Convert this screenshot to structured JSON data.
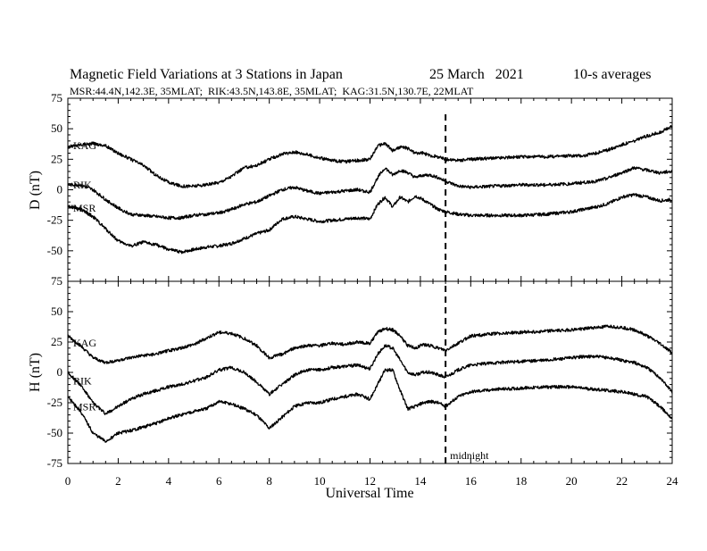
{
  "chart_data": {
    "type": "line",
    "title": "Magnetic Field Variations at 3 Stations in Japan",
    "date": "25 March   2021",
    "averaging": "10-s averages",
    "subtitle": "MSR:44.4N,142.3E, 35MLAT;  RIK:43.5N,143.8E, 35MLAT;  KAG:31.5N,130.7E, 22MLAT",
    "xlabel": "Universal Time",
    "xlim": [
      0,
      24
    ],
    "xticks": [
      0,
      2,
      4,
      6,
      8,
      10,
      12,
      14,
      16,
      18,
      20,
      22,
      24
    ],
    "grid": false,
    "annotation": {
      "text": "midnight",
      "x": 15
    },
    "panels": [
      {
        "ylabel": "D (nT)",
        "ylim": [
          -75,
          75
        ],
        "yticks": [
          75,
          50,
          25,
          0,
          -25,
          -50,
          -75
        ],
        "series": [
          {
            "name": "KAG",
            "x": [
              0,
              0.5,
              1,
              1.5,
              2,
              2.5,
              3,
              3.5,
              4,
              4.5,
              5,
              5.5,
              6,
              6.5,
              7,
              7.5,
              8,
              8.5,
              9,
              9.5,
              10,
              10.5,
              11,
              11.5,
              12,
              12.3,
              12.6,
              12.9,
              13.2,
              13.5,
              13.8,
              14.1,
              14.4,
              14.7,
              15,
              15.5,
              16,
              17,
              18,
              19,
              20,
              20.5,
              21,
              21.5,
              22,
              22.5,
              23,
              23.5,
              24
            ],
            "values": [
              35,
              37,
              38,
              36,
              30,
              25,
              20,
              12,
              6,
              3,
              3,
              4,
              6,
              11,
              18,
              20,
              25,
              29,
              31,
              29,
              26,
              24,
              23,
              24,
              25,
              36,
              38,
              32,
              35,
              34,
              30,
              30,
              28,
              27,
              25,
              24,
              25,
              26,
              27,
              27,
              28,
              28,
              30,
              33,
              37,
              40,
              44,
              47,
              52
            ]
          },
          {
            "name": "RIK",
            "x": [
              0,
              0.5,
              1,
              1.5,
              2,
              2.5,
              3,
              3.5,
              4,
              4.5,
              5,
              5.5,
              6,
              6.5,
              7,
              7.5,
              8,
              8.5,
              9,
              9.5,
              10,
              10.5,
              11,
              11.5,
              12,
              12.3,
              12.6,
              12.9,
              13.2,
              13.5,
              13.8,
              14.1,
              14.4,
              14.7,
              15,
              15.5,
              16,
              17,
              18,
              19,
              20,
              20.5,
              21,
              21.5,
              22,
              22.5,
              23,
              23.5,
              24
            ],
            "values": [
              4,
              4,
              0,
              -8,
              -15,
              -20,
              -21,
              -22,
              -23,
              -23,
              -21,
              -20,
              -19,
              -16,
              -12,
              -10,
              -5,
              0,
              2,
              -1,
              -3,
              -2,
              -1,
              0,
              -2,
              10,
              18,
              12,
              16,
              14,
              10,
              12,
              12,
              10,
              7,
              3,
              2,
              3,
              4,
              4,
              5,
              6,
              7,
              10,
              14,
              18,
              16,
              14,
              15
            ]
          },
          {
            "name": "MSR",
            "x": [
              0,
              0.5,
              1,
              1.5,
              2,
              2.5,
              3,
              3.5,
              4,
              4.5,
              5,
              5.5,
              6,
              6.5,
              7,
              7.5,
              8,
              8.5,
              9,
              9.5,
              10,
              10.5,
              11,
              11.5,
              12,
              12.3,
              12.6,
              12.9,
              13.2,
              13.5,
              13.8,
              14.1,
              14.4,
              14.7,
              15,
              15.5,
              16,
              17,
              18,
              19,
              20,
              20.5,
              21,
              21.5,
              22,
              22.5,
              23,
              23.5,
              24
            ],
            "values": [
              -13,
              -16,
              -22,
              -32,
              -42,
              -46,
              -43,
              -45,
              -49,
              -51,
              -49,
              -47,
              -46,
              -44,
              -40,
              -36,
              -33,
              -24,
              -22,
              -24,
              -26,
              -25,
              -24,
              -23,
              -24,
              -12,
              -6,
              -14,
              -6,
              -10,
              -5,
              -8,
              -12,
              -16,
              -18,
              -20,
              -21,
              -21,
              -21,
              -20,
              -18,
              -16,
              -14,
              -11,
              -6,
              -4,
              -6,
              -9,
              -8
            ]
          }
        ]
      },
      {
        "ylabel": "H (nT)",
        "ylim": [
          -75,
          75
        ],
        "yticks": [
          75,
          50,
          25,
          0,
          -25,
          -50,
          -75
        ],
        "series": [
          {
            "name": "KAG",
            "x": [
              0,
              0.5,
              1,
              1.5,
              2,
              2.5,
              3,
              3.5,
              4,
              4.5,
              5,
              5.5,
              6,
              6.5,
              7,
              7.5,
              8,
              8.5,
              9,
              9.5,
              10,
              10.5,
              11,
              11.5,
              12,
              12.3,
              12.6,
              12.9,
              13.2,
              13.5,
              13.8,
              14.1,
              14.4,
              14.7,
              15,
              15.5,
              16,
              17,
              18,
              19,
              20,
              20.5,
              21,
              21.5,
              22,
              22.5,
              23,
              23.5,
              24
            ],
            "values": [
              30,
              22,
              12,
              8,
              10,
              12,
              14,
              15,
              18,
              20,
              23,
              28,
              33,
              32,
              28,
              22,
              12,
              15,
              20,
              22,
              22,
              24,
              23,
              25,
              24,
              33,
              36,
              35,
              30,
              22,
              20,
              23,
              22,
              20,
              18,
              24,
              30,
              32,
              33,
              34,
              35,
              36,
              37,
              38,
              37,
              35,
              30,
              24,
              16
            ]
          },
          {
            "name": "RIK",
            "x": [
              0,
              0.5,
              1,
              1.5,
              2,
              2.5,
              3,
              3.5,
              4,
              4.5,
              5,
              5.5,
              6,
              6.5,
              7,
              7.5,
              8,
              8.5,
              9,
              9.5,
              10,
              10.5,
              11,
              11.5,
              12,
              12.3,
              12.6,
              12.9,
              13.2,
              13.5,
              13.8,
              14.1,
              14.4,
              14.7,
              15,
              15.5,
              16,
              17,
              18,
              19,
              20,
              20.5,
              21,
              21.5,
              22,
              22.5,
              23,
              23.5,
              24
            ],
            "values": [
              0,
              -10,
              -25,
              -34,
              -28,
              -22,
              -18,
              -15,
              -12,
              -10,
              -7,
              -4,
              2,
              4,
              0,
              -8,
              -18,
              -10,
              -2,
              2,
              2,
              4,
              5,
              6,
              3,
              15,
              22,
              20,
              10,
              0,
              -2,
              0,
              0,
              -2,
              -4,
              2,
              6,
              8,
              9,
              10,
              12,
              13,
              13,
              12,
              10,
              8,
              4,
              -4,
              -16
            ]
          },
          {
            "name": "MSR",
            "x": [
              0,
              0.5,
              1,
              1.5,
              2,
              2.5,
              3,
              3.5,
              4,
              4.5,
              5,
              5.5,
              6,
              6.5,
              7,
              7.5,
              8,
              8.5,
              9,
              9.5,
              10,
              10.5,
              11,
              11.5,
              12,
              12.3,
              12.6,
              12.9,
              13.2,
              13.5,
              13.8,
              14.1,
              14.4,
              14.7,
              15,
              15.5,
              16,
              17,
              18,
              19,
              20,
              20.5,
              21,
              21.5,
              22,
              22.5,
              23,
              23.5,
              24
            ],
            "values": [
              -20,
              -32,
              -50,
              -57,
              -50,
              -48,
              -45,
              -42,
              -38,
              -35,
              -32,
              -30,
              -24,
              -26,
              -30,
              -35,
              -46,
              -37,
              -28,
              -25,
              -25,
              -22,
              -20,
              -18,
              -22,
              -10,
              2,
              2,
              -15,
              -30,
              -28,
              -25,
              -24,
              -25,
              -28,
              -20,
              -16,
              -14,
              -13,
              -12,
              -12,
              -13,
              -14,
              -15,
              -16,
              -18,
              -20,
              -28,
              -38
            ]
          }
        ]
      }
    ]
  }
}
